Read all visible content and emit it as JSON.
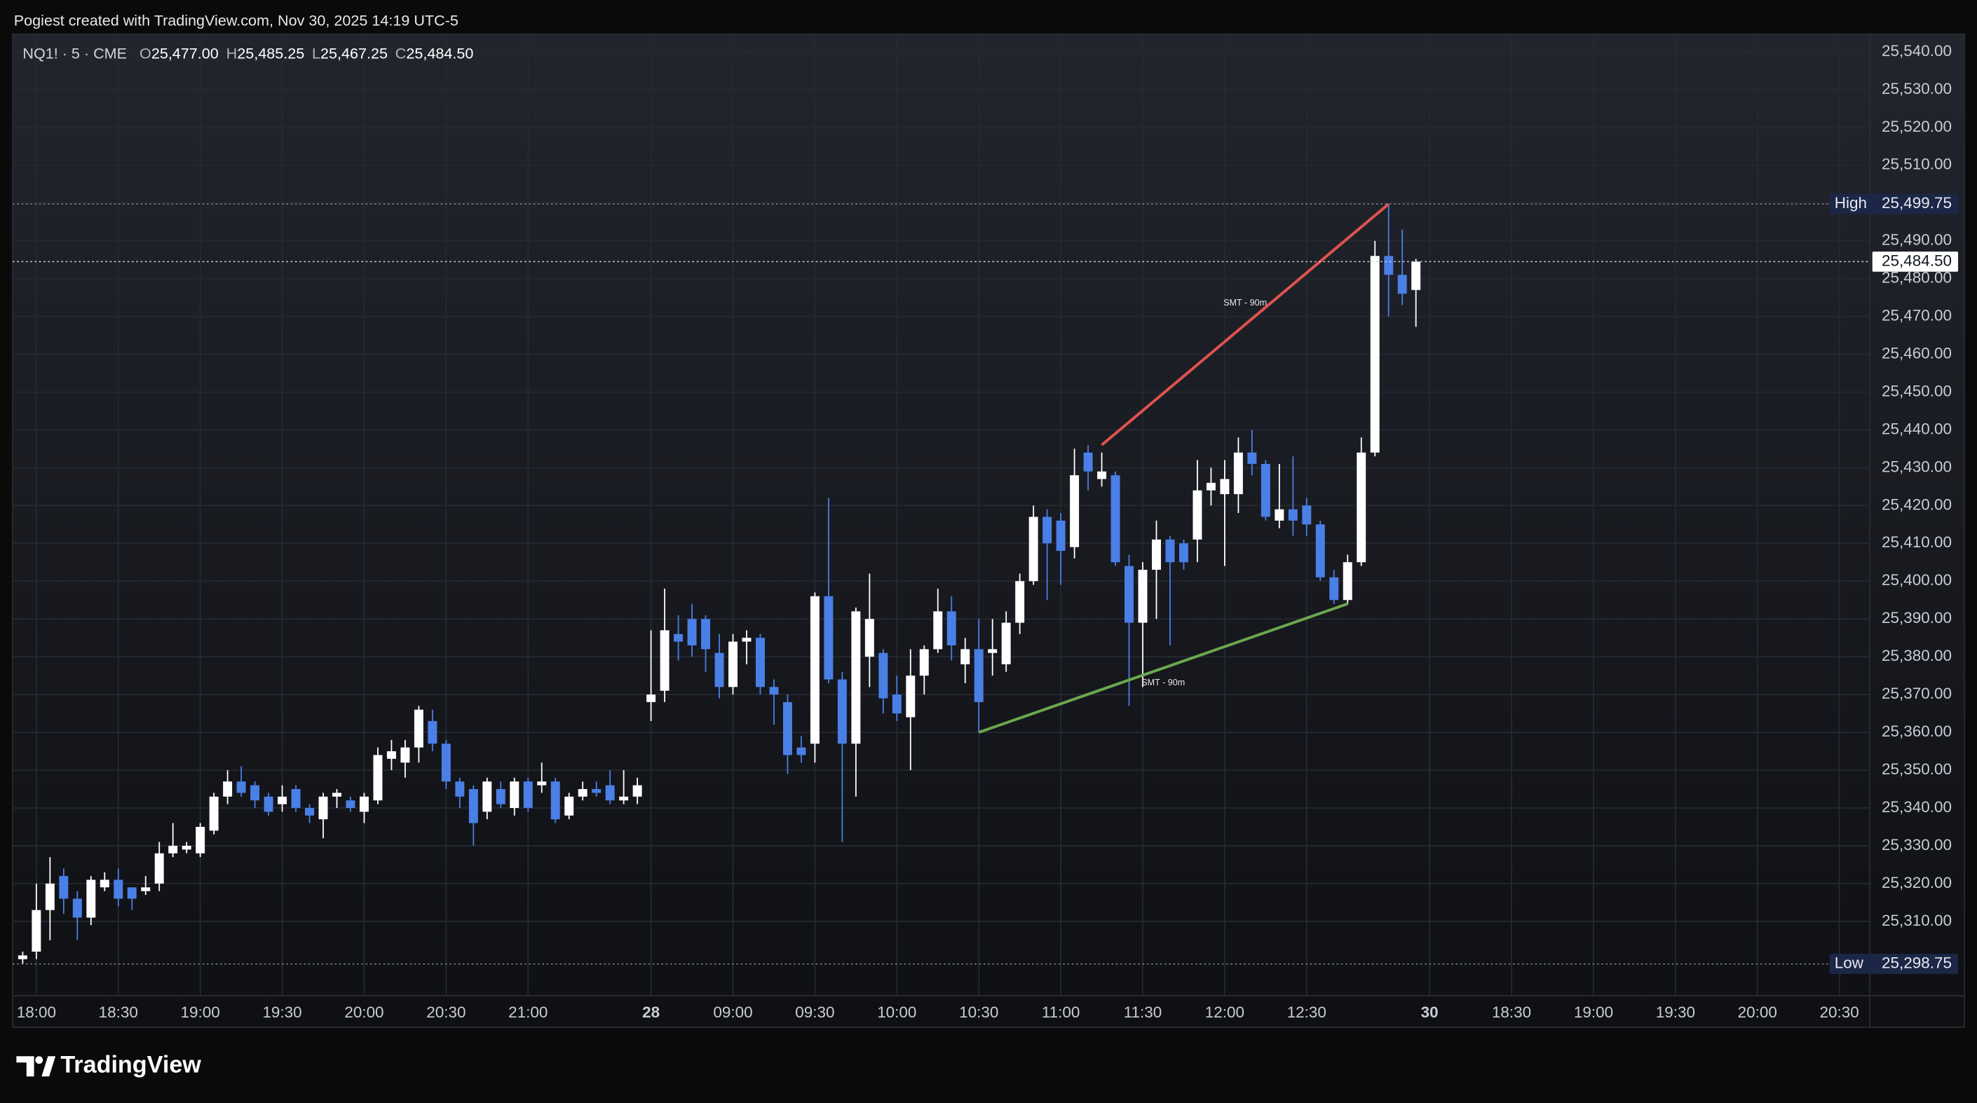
{
  "header": {
    "caption": "Pogiest created with TradingView.com, Nov 30, 2025 14:19 UTC-5"
  },
  "chart_data": {
    "type": "candlestick",
    "legend": {
      "symbol": "NQ1! · 5 · CME",
      "fields": [
        {
          "key": "O",
          "value": "25,477.00"
        },
        {
          "key": "H",
          "value": "25,485.25"
        },
        {
          "key": "L",
          "value": "25,467.25"
        },
        {
          "key": "C",
          "value": "25,484.50"
        }
      ]
    },
    "categories": [
      null,
      "18:00",
      null,
      null,
      null,
      null,
      null,
      "18:30",
      null,
      null,
      null,
      null,
      null,
      "19:00",
      null,
      null,
      null,
      null,
      null,
      "19:30",
      null,
      null,
      null,
      null,
      null,
      "20:00",
      null,
      null,
      null,
      null,
      null,
      "20:30",
      null,
      null,
      null,
      null,
      null,
      "21:00",
      null,
      null,
      null,
      null,
      null,
      null,
      null,
      null,
      "28",
      null,
      null,
      null,
      null,
      null,
      "09:00",
      null,
      null,
      null,
      null,
      null,
      "09:30",
      null,
      null,
      null,
      null,
      null,
      "10:00",
      null,
      null,
      null,
      null,
      null,
      "10:30",
      null,
      null,
      null,
      null,
      null,
      "11:00",
      null,
      null,
      null,
      null,
      null,
      "11:30",
      null,
      null,
      null,
      null,
      null,
      "12:00",
      null,
      null,
      null,
      null,
      null,
      "12:30",
      null,
      null,
      null,
      null,
      null,
      null,
      null,
      null,
      "30",
      null,
      null,
      null,
      null,
      null,
      "18:30",
      null,
      null,
      null,
      null,
      null,
      "19:00",
      null,
      null,
      null,
      null,
      null,
      "19:30",
      null,
      null,
      null,
      null,
      null,
      "20:00",
      null,
      null,
      null,
      null,
      null,
      "20:30",
      null,
      null
    ],
    "open": [
      25300,
      25302,
      25313,
      25322,
      25316,
      25311,
      25319,
      25321,
      25319,
      25318,
      25320,
      25328,
      25329,
      25328,
      25334,
      25343,
      25347,
      25346,
      25343,
      25341,
      25345,
      25340,
      25337,
      25343,
      25342,
      25339,
      25342,
      25353,
      25352,
      25356,
      25363,
      25357,
      25347,
      25345,
      25339,
      25345,
      25340,
      25347,
      25346,
      25347,
      25338,
      25343,
      25345,
      25346,
      25342,
      25343,
      25368,
      25371,
      25386,
      25390,
      25390,
      25381,
      25372,
      25384,
      25385,
      25372,
      25368,
      25356,
      25357,
      25396,
      25374,
      25357,
      25380,
      25381,
      25370,
      25364,
      25375,
      25382,
      25392,
      25378,
      25382,
      25381,
      25378,
      25389,
      25400,
      25417,
      25416,
      25409,
      25434,
      25427,
      25428,
      25404,
      25389,
      25403,
      25411,
      25410,
      25411,
      25424,
      25423,
      25423,
      25434,
      25431,
      25416,
      25419,
      25420,
      25415,
      25401,
      25395,
      25405,
      25434,
      25486,
      25481,
      25477,
      null,
      null,
      null,
      null,
      null,
      null,
      null,
      null,
      null,
      null,
      null,
      null,
      null,
      null,
      null,
      null,
      null,
      null,
      null,
      null,
      null,
      null,
      null,
      null,
      null,
      null,
      null,
      null,
      null,
      null,
      null,
      null,
      null
    ],
    "high": [
      25302,
      25320,
      25327,
      25324,
      25318,
      25322,
      25323,
      25324,
      25319,
      25322,
      25331,
      25336,
      25331,
      25336,
      25344,
      25350,
      25351,
      25347,
      25344,
      25346,
      25346,
      25341,
      25344,
      25345,
      25343,
      25344,
      25356,
      25358,
      25358,
      25367,
      25366,
      25358,
      25348,
      25346,
      25348,
      25347,
      25348,
      25348,
      25352,
      25348,
      25344,
      25347,
      25347,
      25350,
      25350,
      25348,
      25387,
      25398,
      25391,
      25394,
      25391,
      25386,
      25386,
      25387,
      25386,
      25374,
      25370,
      25359,
      25397,
      25422,
      25376,
      25393,
      25402,
      25382,
      25375,
      25382,
      25383,
      25398,
      25396,
      25385,
      25390,
      25390,
      25392,
      25402,
      25420,
      25419,
      25418,
      25435,
      25436,
      25434,
      25429,
      25407,
      25405,
      25416,
      25412,
      25411,
      25432,
      25430,
      25432,
      25438,
      25440,
      25432,
      25431,
      25433,
      25422,
      25416,
      25403,
      25407,
      25438,
      25490,
      25499.75,
      25493,
      25485.25,
      null,
      null,
      null,
      null,
      null,
      null,
      null,
      null,
      null,
      null,
      null,
      null,
      null,
      null,
      null,
      null,
      null,
      null,
      null,
      null,
      null,
      null,
      null,
      null,
      null,
      null,
      null,
      null,
      null,
      null,
      null,
      null,
      null
    ],
    "low": [
      25298.75,
      25300,
      25305,
      25312,
      25305,
      25309,
      25318,
      25314,
      25313,
      25317,
      25318,
      25327,
      25328,
      25327,
      25333,
      25341,
      25343,
      25340,
      25338,
      25339,
      25339,
      25336,
      25332,
      25340,
      25339,
      25336,
      25341,
      25350,
      25348,
      25352,
      25355,
      25345,
      25340,
      25330,
      25337,
      25340,
      25338,
      25339,
      25344,
      25336,
      25337,
      25342,
      25343,
      25341,
      25341,
      25341,
      25363,
      25368,
      25379,
      25380,
      25376,
      25369,
      25370,
      25378,
      25370,
      25362,
      25349,
      25352,
      25352,
      25373,
      25331,
      25343,
      25372,
      25365,
      25363,
      25350,
      25370,
      25381,
      25379,
      25373,
      25360,
      25375,
      25376,
      25386,
      25399,
      25395,
      25399,
      25406,
      25424,
      25425,
      25404,
      25367,
      25372,
      25390,
      25383,
      25403,
      25405,
      25420,
      25404,
      25418,
      25428,
      25416,
      25414,
      25412,
      25412,
      25400,
      25394,
      25394,
      25404,
      25433,
      25470,
      25473,
      25467.25,
      null,
      null,
      null,
      null,
      null,
      null,
      null,
      null,
      null,
      null,
      null,
      null,
      null,
      null,
      null,
      null,
      null,
      null,
      null,
      null,
      null,
      null,
      null,
      null,
      null,
      null,
      null,
      null,
      null,
      null,
      null,
      null,
      null
    ],
    "close": [
      25301,
      25313,
      25320,
      25316,
      25311,
      25321,
      25321,
      25316,
      25316,
      25319,
      25328,
      25330,
      25330,
      25335,
      25343,
      25347,
      25344,
      25342,
      25339,
      25343,
      25340,
      25338,
      25343,
      25344,
      25340,
      25343,
      25354,
      25355,
      25356,
      25366,
      25357,
      25347,
      25343,
      25336,
      25347,
      25341,
      25347,
      25340,
      25347,
      25337,
      25343,
      25345,
      25344,
      25342,
      25343,
      25346,
      25370,
      25387,
      25384,
      25383,
      25382,
      25372,
      25384,
      25385,
      25372,
      25370,
      25354,
      25354,
      25396,
      25374,
      25357,
      25392,
      25390,
      25369,
      25365,
      25375,
      25382,
      25392,
      25383,
      25382,
      25368,
      25382,
      25389,
      25400,
      25417,
      25410,
      25408,
      25428,
      25429,
      25429,
      25405,
      25389,
      25403,
      25411,
      25405,
      25405,
      25424,
      25426,
      25427,
      25434,
      25431,
      25417,
      25419,
      25416,
      25415,
      25401,
      25395,
      25405,
      25434,
      25486,
      25481,
      25476,
      25484.5,
      null,
      null,
      null,
      null,
      null,
      null,
      null,
      null,
      null,
      null,
      null,
      null,
      null,
      null,
      null,
      null,
      null,
      null,
      null,
      null,
      null,
      null,
      null,
      null,
      null,
      null,
      null,
      null,
      null,
      null,
      null,
      null,
      null
    ],
    "up_color": "#ffffff",
    "down_color": "#4a7fe6",
    "ylim": [
      25290.33,
      25544.67
    ],
    "yticks": [
      {
        "value": 25310,
        "label": "25,310.00"
      },
      {
        "value": 25320,
        "label": "25,320.00"
      },
      {
        "value": 25330,
        "label": "25,330.00"
      },
      {
        "value": 25340,
        "label": "25,340.00"
      },
      {
        "value": 25350,
        "label": "25,350.00"
      },
      {
        "value": 25360,
        "label": "25,360.00"
      },
      {
        "value": 25370,
        "label": "25,370.00"
      },
      {
        "value": 25380,
        "label": "25,380.00"
      },
      {
        "value": 25390,
        "label": "25,390.00"
      },
      {
        "value": 25400,
        "label": "25,400.00"
      },
      {
        "value": 25410,
        "label": "25,410.00"
      },
      {
        "value": 25420,
        "label": "25,420.00"
      },
      {
        "value": 25430,
        "label": "25,430.00"
      },
      {
        "value": 25440,
        "label": "25,440.00"
      },
      {
        "value": 25450,
        "label": "25,450.00"
      },
      {
        "value": 25460,
        "label": "25,460.00"
      },
      {
        "value": 25470,
        "label": "25,470.00"
      },
      {
        "value": 25480,
        "label": "25,480.00"
      },
      {
        "value": 25490,
        "label": "25,490.00"
      },
      {
        "value": 25500,
        "label": "25,500.00"
      },
      {
        "value": 25510,
        "label": "25,510.00"
      },
      {
        "value": 25520,
        "label": "25,520.00"
      },
      {
        "value": 25530,
        "label": "25,530.00"
      },
      {
        "value": 25540,
        "label": "25,540.00"
      }
    ],
    "grid": true,
    "price_lines": [
      {
        "label": "High",
        "value": 25499.75,
        "value_label": "25,499.75",
        "color": "#1c2747"
      },
      {
        "value": 25484.5,
        "value_label": "25,484.50",
        "color": "#ffffff"
      },
      {
        "label": "Low",
        "value": 25298.75,
        "value_label": "25,298.75",
        "color": "#1c2747"
      }
    ],
    "annotations": [
      {
        "from": [
          79,
          25436
        ],
        "to": [
          100,
          25499.75
        ],
        "color": "#e0524f",
        "label": "SMT - 90m"
      },
      {
        "from": [
          70,
          25360
        ],
        "to": [
          97,
          25394
        ],
        "color": "#6aa84f",
        "label": "SMT - 90m"
      }
    ]
  },
  "footer": {
    "brand": "TradingView"
  }
}
